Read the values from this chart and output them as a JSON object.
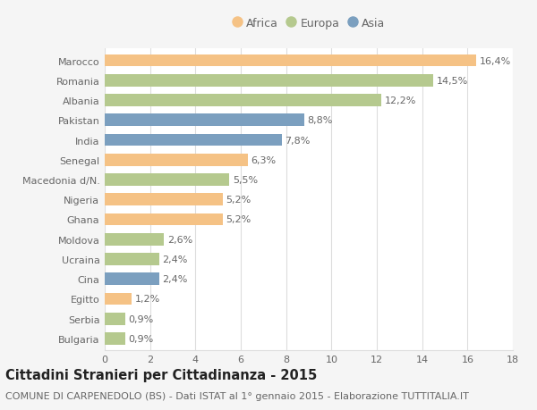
{
  "countries": [
    "Marocco",
    "Romania",
    "Albania",
    "Pakistan",
    "India",
    "Senegal",
    "Macedonia d/N.",
    "Nigeria",
    "Ghana",
    "Moldova",
    "Ucraina",
    "Cina",
    "Egitto",
    "Serbia",
    "Bulgaria"
  ],
  "values": [
    16.4,
    14.5,
    12.2,
    8.8,
    7.8,
    6.3,
    5.5,
    5.2,
    5.2,
    2.6,
    2.4,
    2.4,
    1.2,
    0.9,
    0.9
  ],
  "labels": [
    "16,4%",
    "14,5%",
    "12,2%",
    "8,8%",
    "7,8%",
    "6,3%",
    "5,5%",
    "5,2%",
    "5,2%",
    "2,6%",
    "2,4%",
    "2,4%",
    "1,2%",
    "0,9%",
    "0,9%"
  ],
  "continents": [
    "Africa",
    "Europa",
    "Europa",
    "Asia",
    "Asia",
    "Africa",
    "Europa",
    "Africa",
    "Africa",
    "Europa",
    "Europa",
    "Asia",
    "Africa",
    "Europa",
    "Europa"
  ],
  "colors": {
    "Africa": "#F5C285",
    "Europa": "#B5C98E",
    "Asia": "#7B9FBF"
  },
  "xlim": [
    0,
    18
  ],
  "xticks": [
    0,
    2,
    4,
    6,
    8,
    10,
    12,
    14,
    16,
    18
  ],
  "title": "Cittadini Stranieri per Cittadinanza - 2015",
  "subtitle": "COMUNE DI CARPENEDOLO (BS) - Dati ISTAT al 1° gennaio 2015 - Elaborazione TUTTITALIA.IT",
  "fig_background": "#f5f5f5",
  "plot_background": "#ffffff",
  "grid_color": "#dddddd",
  "text_color": "#666666",
  "title_color": "#222222",
  "label_fontsize": 8.0,
  "tick_fontsize": 8.0,
  "title_fontsize": 10.5,
  "subtitle_fontsize": 8.0,
  "bar_height": 0.62
}
